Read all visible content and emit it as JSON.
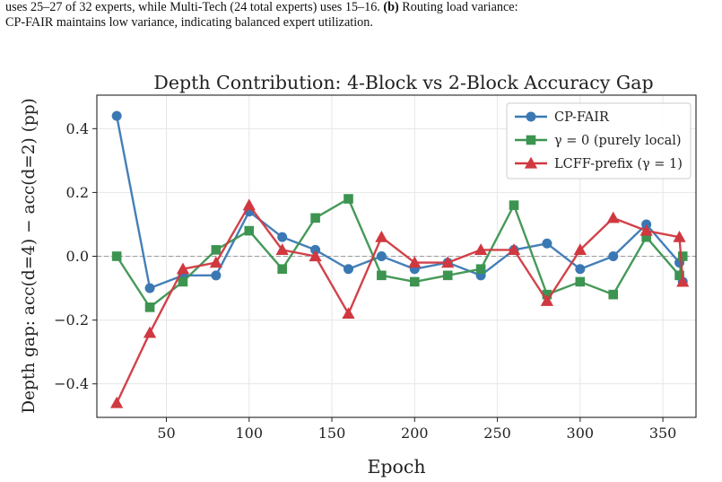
{
  "caption": {
    "line1_a": "uses 25–27 of 32 experts, while Multi-Tech (24 total experts) uses 15–16. ",
    "line1_b": "(b)",
    "line1_c": " Routing load variance:",
    "line2": "CP-FAIR maintains low variance, indicating balanced expert utilization."
  },
  "chart_data": {
    "type": "line",
    "title": "Depth Contribution: 4-Block vs 2-Block Accuracy Gap",
    "xlabel": "Epoch",
    "ylabel": "Depth gap: acc(d=4) − acc(d=2) (pp)",
    "xlim": [
      8,
      370
    ],
    "ylim": [
      -0.505,
      0.505
    ],
    "xticks": [
      50,
      100,
      150,
      200,
      250,
      300,
      350
    ],
    "yticks": [
      -0.4,
      -0.2,
      0.0,
      0.2,
      0.4
    ],
    "ytick_labels": [
      "−0.4",
      "−0.2",
      "0.0",
      "0.2",
      "0.4"
    ],
    "grid": true,
    "reference_line_y": 0.0,
    "legend_position": "top-right",
    "x": [
      20,
      40,
      60,
      80,
      100,
      120,
      140,
      160,
      180,
      200,
      220,
      240,
      260,
      280,
      300,
      320,
      340,
      360,
      362
    ],
    "series": [
      {
        "name": "CP-FAIR",
        "marker": "circle",
        "color": "#3a78b4",
        "values": [
          0.44,
          -0.1,
          -0.06,
          -0.06,
          0.14,
          0.06,
          0.02,
          -0.04,
          0.0,
          -0.04,
          -0.02,
          -0.06,
          0.02,
          0.04,
          -0.04,
          0.0,
          0.1,
          -0.02,
          -0.08
        ]
      },
      {
        "name": "γ = 0 (purely local)",
        "marker": "square",
        "color": "#3c9450",
        "values": [
          0.0,
          -0.16,
          -0.08,
          0.02,
          0.08,
          -0.04,
          0.12,
          0.18,
          -0.06,
          -0.08,
          -0.06,
          -0.04,
          0.16,
          -0.12,
          -0.08,
          -0.12,
          0.06,
          -0.06,
          0.0
        ]
      },
      {
        "name": "LCFF-prefix (γ = 1)",
        "marker": "triangle",
        "color": "#d03840",
        "values": [
          -0.46,
          -0.24,
          -0.04,
          -0.02,
          0.16,
          0.02,
          0.0,
          -0.18,
          0.06,
          -0.02,
          -0.02,
          0.02,
          0.02,
          -0.14,
          0.02,
          0.12,
          0.08,
          0.06,
          -0.08
        ]
      }
    ]
  }
}
